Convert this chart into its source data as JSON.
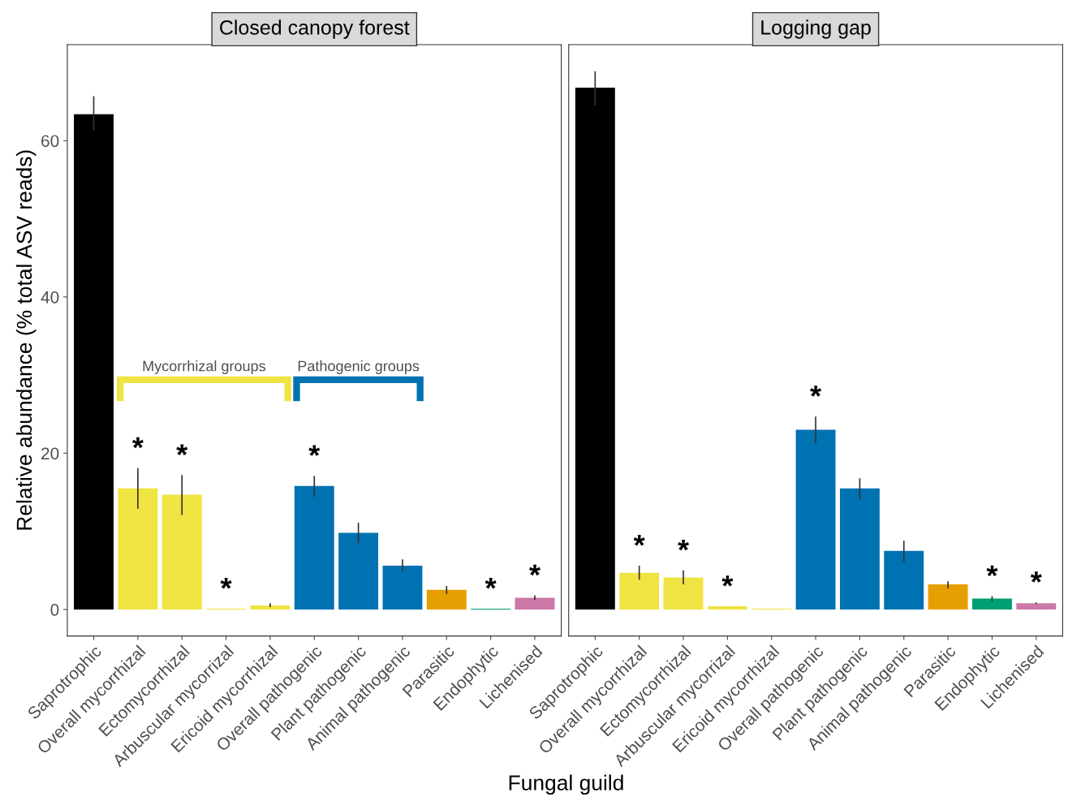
{
  "chart_data": [
    {
      "type": "bar",
      "title": "Closed canopy forest",
      "ylabel": "Relative abundance (% total ASV reads)",
      "xlabel": "Fungal guild",
      "categories": [
        "Saprotrophic",
        "Overall mycorrhizal",
        "Ectomycorrhizal",
        "Arbuscular mycorrizal",
        "Ericoid mycorrhizal",
        "Overall pathogenic",
        "Plant pathogenic",
        "Animal pathogenic",
        "Parasitic",
        "Endophytic",
        "Lichenised"
      ],
      "values": [
        63.4,
        15.5,
        14.7,
        0.1,
        0.5,
        15.8,
        9.8,
        5.6,
        2.5,
        0.1,
        1.5
      ],
      "colors": [
        "#000000",
        "#f0e442",
        "#f0e442",
        "#f0e442",
        "#f0e442",
        "#0072b2",
        "#0072b2",
        "#0072b2",
        "#e69f00",
        "#009e73",
        "#cc79a7"
      ],
      "errors": [
        [
          61.3,
          65.7
        ],
        [
          12.9,
          18.1
        ],
        [
          12.1,
          17.2
        ],
        null,
        [
          0.3,
          0.8
        ],
        [
          14.4,
          17.1
        ],
        [
          8.5,
          11.1
        ],
        [
          4.9,
          6.4
        ],
        [
          2.0,
          3.0
        ],
        null,
        [
          1.2,
          1.8
        ]
      ],
      "ylim": [
        -3.4,
        72.3
      ],
      "yticks": [
        0,
        20,
        40,
        60
      ],
      "grid": false,
      "value_labels": [
        null,
        "*",
        "*",
        "*",
        null,
        "*",
        null,
        null,
        null,
        "*",
        "*"
      ],
      "annotations": [
        "Mycorrhizal groups",
        "Pathogenic groups"
      ]
    },
    {
      "type": "bar",
      "title": "Logging gap",
      "categories": [
        "Saprotrophic",
        "Overall mycorrhizal",
        "Ectomycorrhizal",
        "Arbuscular mycorrizal",
        "Ericoid mycorrhizal",
        "Overall pathogenic",
        "Plant pathogenic",
        "Animal pathogenic",
        "Parasitic",
        "Endophytic",
        "Lichenised"
      ],
      "values": [
        66.8,
        4.7,
        4.1,
        0.4,
        0.1,
        23.0,
        15.5,
        7.5,
        3.2,
        1.4,
        0.8
      ],
      "colors": [
        "#000000",
        "#f0e442",
        "#f0e442",
        "#f0e442",
        "#f0e442",
        "#0072b2",
        "#0072b2",
        "#0072b2",
        "#e69f00",
        "#009e73",
        "#cc79a7"
      ],
      "errors": [
        [
          64.5,
          68.9
        ],
        [
          3.8,
          5.6
        ],
        [
          3.2,
          5.0
        ],
        null,
        null,
        [
          21.3,
          24.7
        ],
        [
          14.1,
          16.8
        ],
        [
          6.1,
          8.8
        ],
        [
          2.7,
          3.6
        ],
        [
          1.0,
          1.7
        ],
        [
          0.7,
          0.9
        ]
      ],
      "ylim": [
        -3.4,
        72.3
      ],
      "yticks": [
        0,
        20,
        40,
        60
      ],
      "grid": false,
      "tick_labels": "x",
      "value_labels": [
        null,
        "*",
        "*",
        "*",
        null,
        "*",
        null,
        null,
        null,
        "*",
        "*"
      ]
    }
  ]
}
